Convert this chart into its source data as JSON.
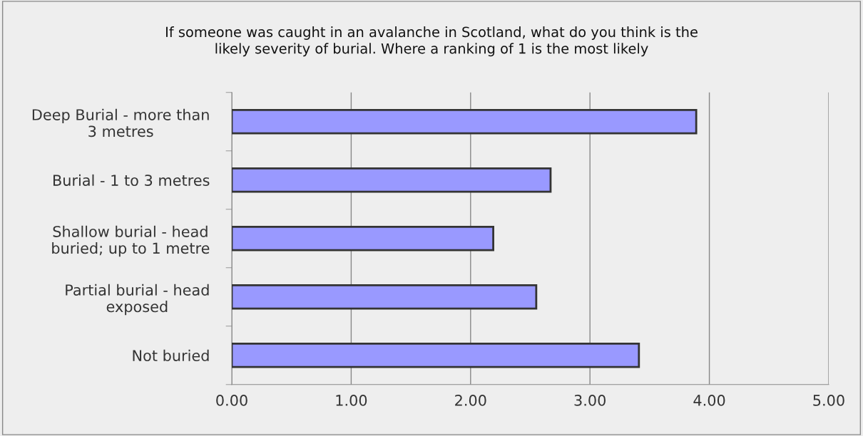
{
  "chart_data": {
    "type": "bar",
    "orientation": "horizontal",
    "title": "If someone was caught in an avalanche in Scotland, what do you think is the\nlikely severity of burial. Where a ranking of 1 is the most likely",
    "categories": [
      "Deep Burial - more than\n3 metres",
      "Burial - 1 to 3 metres",
      "Shallow burial - head\nburied; up to 1 metre",
      "Partial burial - head\nexposed",
      "Not buried"
    ],
    "values": [
      3.89,
      2.67,
      2.19,
      2.55,
      3.41
    ],
    "color": "#9999ff",
    "xlim": [
      0,
      5
    ],
    "xticks": [
      {
        "value": 0,
        "label": "0.00"
      },
      {
        "value": 1,
        "label": "1.00"
      },
      {
        "value": 2,
        "label": "2.00"
      },
      {
        "value": 3,
        "label": "3.00"
      },
      {
        "value": 4,
        "label": "4.00"
      },
      {
        "value": 5,
        "label": "5.00"
      }
    ],
    "grid": "x",
    "legend": false
  }
}
